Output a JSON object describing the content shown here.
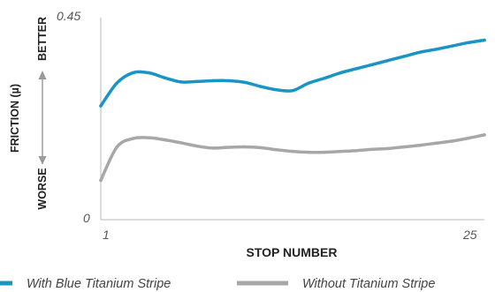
{
  "chart_data": {
    "type": "line",
    "x": [
      1,
      2,
      3,
      4,
      5,
      6,
      7,
      8,
      9,
      10,
      11,
      12,
      13,
      14,
      15,
      16,
      17,
      18,
      19,
      20,
      21,
      22,
      23,
      24,
      25
    ],
    "xticks": [
      "1",
      "25"
    ],
    "yticks": [
      "0",
      "0.45"
    ],
    "xlim": [
      1,
      25
    ],
    "ylim": [
      0,
      0.45
    ],
    "xlabel": "STOP NUMBER",
    "ylabel": "FRICTION (µ)",
    "better_label": "BETTER",
    "worse_label": "WORSE",
    "grid": false,
    "legend_position": "bottom",
    "series": [
      {
        "name": "With Blue Titanium Stripe",
        "color": "#1a94c4",
        "values": [
          0.275,
          0.33,
          0.355,
          0.355,
          0.343,
          0.333,
          0.334,
          0.336,
          0.336,
          0.332,
          0.322,
          0.314,
          0.312,
          0.33,
          0.342,
          0.355,
          0.365,
          0.375,
          0.385,
          0.395,
          0.405,
          0.412,
          0.42,
          0.428,
          0.434
        ]
      },
      {
        "name": "Without Titanium Stripe",
        "color": "#a7a7a9",
        "values": [
          0.095,
          0.175,
          0.196,
          0.198,
          0.193,
          0.186,
          0.178,
          0.173,
          0.175,
          0.176,
          0.174,
          0.169,
          0.165,
          0.163,
          0.163,
          0.165,
          0.167,
          0.17,
          0.172,
          0.176,
          0.18,
          0.185,
          0.19,
          0.197,
          0.205
        ]
      }
    ]
  }
}
